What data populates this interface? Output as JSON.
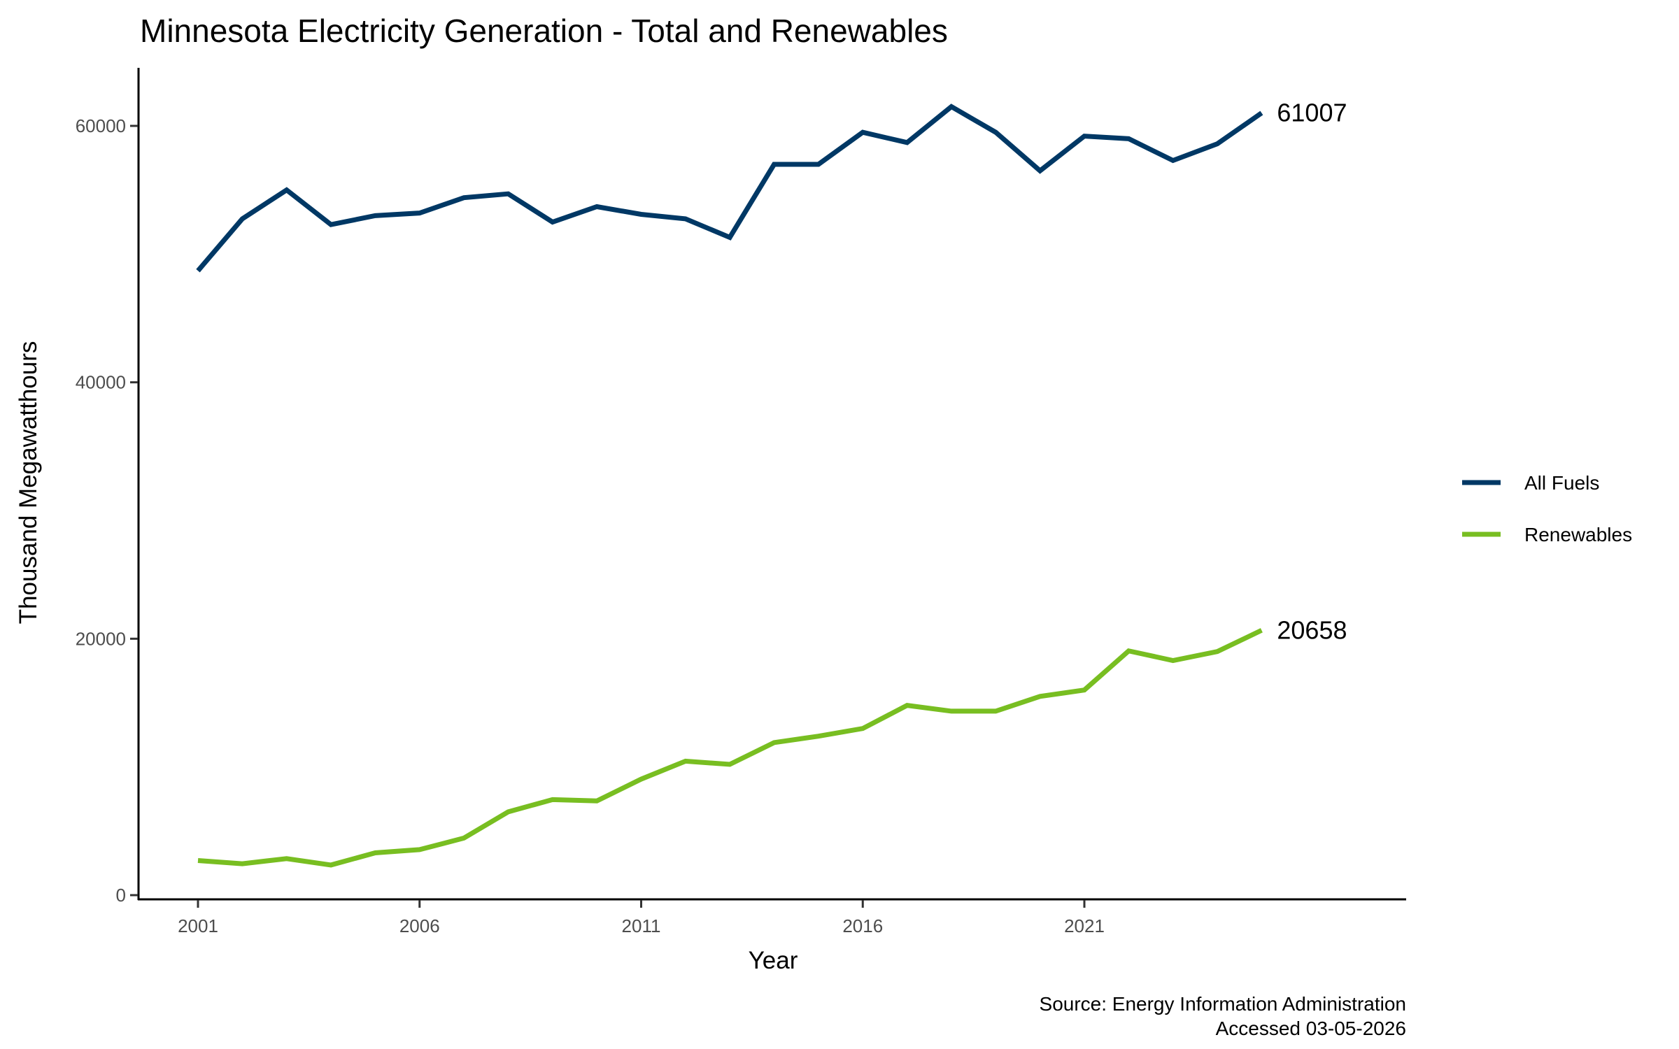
{
  "chart_data": {
    "type": "line",
    "title": "Minnesota Electricity Generation - Total and Renewables",
    "xlabel": "Year",
    "ylabel": "Thousand Megawatthours",
    "caption": [
      "Source: Energy Information Administration",
      "Accessed 03-05-2026"
    ],
    "x": [
      2001,
      2002,
      2003,
      2004,
      2005,
      2006,
      2007,
      2008,
      2009,
      2010,
      2011,
      2012,
      2013,
      2014,
      2015,
      2016,
      2017,
      2018,
      2019,
      2020,
      2021,
      2022,
      2023,
      2024,
      2025
    ],
    "xticks": [
      "2001",
      "2006",
      "2011",
      "2016",
      "2021"
    ],
    "yticks": [
      "0",
      "20000",
      "40000",
      "60000"
    ],
    "ylim": [
      0,
      64000
    ],
    "grid": false,
    "legend_position": "right",
    "series": [
      {
        "name": "All Fuels",
        "color": "#003865",
        "values": [
          48700,
          52750,
          55000,
          52300,
          53000,
          53200,
          54400,
          54700,
          52500,
          53700,
          53100,
          52750,
          51300,
          57000,
          57000,
          59500,
          58700,
          61500,
          59500,
          56500,
          59200,
          59000,
          57300,
          58600,
          61007
        ],
        "end_label": "61007"
      },
      {
        "name": "Renewables",
        "color": "#78BE21",
        "values": [
          2700,
          2450,
          2850,
          2350,
          3300,
          3550,
          4450,
          6500,
          7450,
          7350,
          9050,
          10450,
          10200,
          11900,
          12400,
          13000,
          14800,
          14350,
          14350,
          15500,
          16000,
          19050,
          18300,
          19000,
          20658
        ],
        "end_label": "20658"
      }
    ]
  }
}
